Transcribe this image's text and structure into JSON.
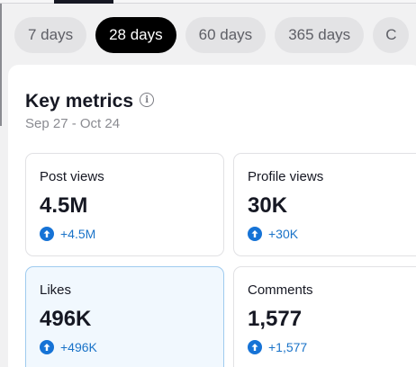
{
  "time_range": {
    "options": [
      {
        "label": "7 days",
        "active": false
      },
      {
        "label": "28 days",
        "active": true
      },
      {
        "label": "60 days",
        "active": false
      },
      {
        "label": "365 days",
        "active": false
      },
      {
        "label": "C",
        "active": false
      }
    ]
  },
  "key_metrics": {
    "title": "Key metrics",
    "date_range": "Sep 27 - Oct 24",
    "info_icon": "info-circle-icon",
    "cards": [
      {
        "label": "Post views",
        "value": "4.5M",
        "change": "+4.5M",
        "trend_icon": "arrow-up-circle-icon"
      },
      {
        "label": "Profile views",
        "value": "30K",
        "change": "+30K",
        "trend_icon": "arrow-up-circle-icon"
      },
      {
        "label": "Likes",
        "value": "496K",
        "change": "+496K",
        "trend_icon": "arrow-up-circle-icon"
      },
      {
        "label": "Comments",
        "value": "1,577",
        "change": "+1,577",
        "trend_icon": "arrow-up-circle-icon"
      }
    ]
  },
  "colors": {
    "accent": "#1673d6",
    "selected_card_bg": "#f1f8fe",
    "active_chip_bg": "#000000"
  }
}
